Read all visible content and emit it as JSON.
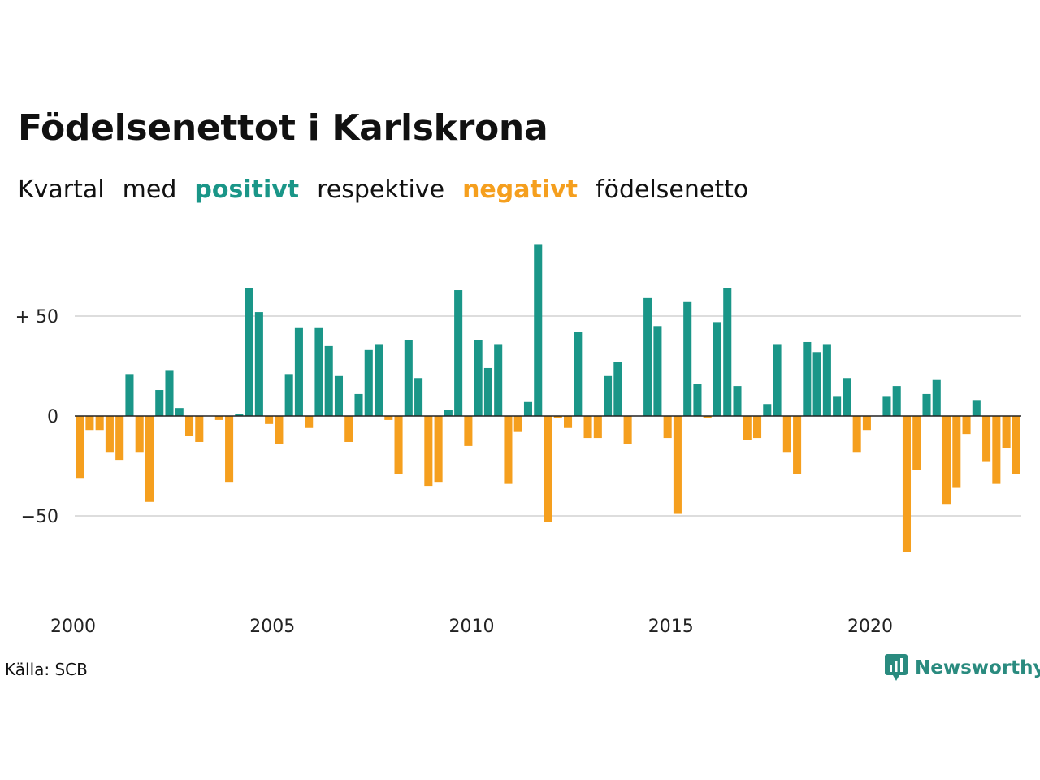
{
  "title": "Födelsenettot i Karlskrona",
  "subtitle": {
    "w1": "Kvartal",
    "w2": "med",
    "positive": "positivt",
    "w3": "respektive",
    "negative": "negativt",
    "w4": "födelsenetto"
  },
  "source": "Källa: SCB",
  "brand": "Newsworthy",
  "colors": {
    "positive": "#1a9688",
    "negative": "#f59f1e",
    "brand": "#2a8b7f",
    "grid": "#dddddd",
    "axis": "#222222"
  },
  "chart_data": {
    "type": "bar",
    "x_start": "2000 Q1",
    "x_ticks": [
      "2000",
      "2005",
      "2010",
      "2015",
      "2020"
    ],
    "y_ticks": [
      {
        "value": 50,
        "label": "+ 50"
      },
      {
        "value": 0,
        "label": "0"
      },
      {
        "value": -50,
        "label": "−50"
      }
    ],
    "ylim": [
      -75,
      90
    ],
    "grid": true,
    "values": [
      -31,
      -7,
      -7,
      -18,
      -22,
      21,
      -18,
      -43,
      13,
      23,
      4,
      -10,
      -13,
      0,
      -2,
      -33,
      1,
      64,
      52,
      -4,
      -14,
      21,
      44,
      -6,
      44,
      35,
      20,
      -13,
      11,
      33,
      36,
      -2,
      -29,
      38,
      19,
      -35,
      -33,
      3,
      63,
      -15,
      38,
      24,
      36,
      -34,
      -8,
      7,
      86,
      -53,
      -1,
      -6,
      42,
      -11,
      -11,
      20,
      27,
      -14,
      0,
      59,
      45,
      -11,
      -49,
      57,
      16,
      -1,
      47,
      64,
      15,
      -12,
      -11,
      6,
      36,
      -18,
      -29,
      37,
      32,
      36,
      10,
      19,
      -18,
      -7,
      0,
      10,
      15,
      -68,
      -27,
      11,
      18,
      -44,
      -36,
      -9,
      8,
      -23,
      -34,
      -16,
      -29
    ]
  }
}
